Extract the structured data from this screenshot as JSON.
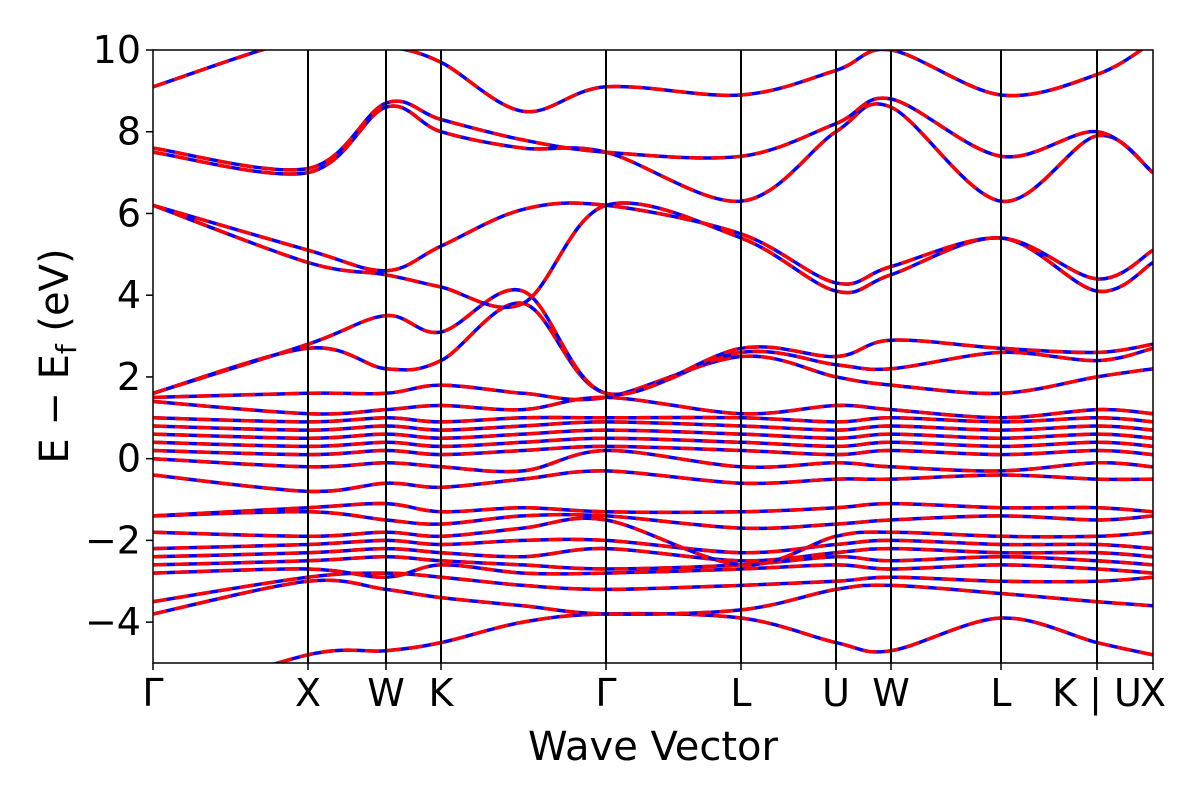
{
  "chart_data": {
    "type": "line",
    "title": "",
    "xlabel": "Wave Vector",
    "ylabel": "E − E_f (eV)",
    "ylabel_main": "E − E",
    "ylabel_sub": "f",
    "ylabel_unit": " (eV)",
    "ylim": [
      -5,
      10
    ],
    "xlim": [
      0,
      1
    ],
    "grid": false,
    "y_ticks": [
      {
        "value": -4,
        "label": "−4"
      },
      {
        "value": -2,
        "label": "−2"
      },
      {
        "value": 0,
        "label": "0"
      },
      {
        "value": 2,
        "label": "2"
      },
      {
        "value": 4,
        "label": "4"
      },
      {
        "value": 6,
        "label": "6"
      },
      {
        "value": 8,
        "label": "8"
      },
      {
        "value": 10,
        "label": "10"
      }
    ],
    "kpoints": [
      {
        "label": "Γ",
        "x": 0.0
      },
      {
        "label": "X",
        "x": 0.155
      },
      {
        "label": "W",
        "x": 0.233
      },
      {
        "label": "K",
        "x": 0.288
      },
      {
        "label": "Γ",
        "x": 0.453
      },
      {
        "label": "L",
        "x": 0.588
      },
      {
        "label": "U",
        "x": 0.683
      },
      {
        "label": "W",
        "x": 0.738
      },
      {
        "label": "L",
        "x": 0.848
      },
      {
        "label": "K | U",
        "x": 0.944
      },
      {
        "label": "X",
        "x": 1.0
      }
    ],
    "series_colors": {
      "first": "#0000ff",
      "second": "#ff0000"
    },
    "line_style": "blue solid line overlaid by red dashed line (identical bands)",
    "x": [
      0.0,
      0.155,
      0.233,
      0.288,
      0.37,
      0.453,
      0.588,
      0.683,
      0.738,
      0.848,
      0.944,
      1.0
    ],
    "bands": [
      [
        -6.0,
        -4.8,
        -4.7,
        -4.5,
        -4.0,
        -3.8,
        -3.9,
        -4.5,
        -4.7,
        -3.9,
        -4.5,
        -4.8
      ],
      [
        -3.8,
        -3.0,
        -3.2,
        -3.4,
        -3.6,
        -3.8,
        -3.7,
        -3.2,
        -3.1,
        -3.3,
        -3.5,
        -3.6
      ],
      [
        -3.5,
        -2.9,
        -2.8,
        -2.9,
        -3.1,
        -3.2,
        -3.1,
        -3.0,
        -2.9,
        -3.0,
        -3.0,
        -2.9
      ],
      [
        -2.8,
        -2.7,
        -2.9,
        -2.6,
        -2.8,
        -2.8,
        -2.7,
        -2.6,
        -2.7,
        -2.6,
        -2.7,
        -2.8
      ],
      [
        -2.6,
        -2.5,
        -2.4,
        -2.5,
        -2.6,
        -2.7,
        -2.6,
        -2.4,
        -2.5,
        -2.4,
        -2.5,
        -2.6
      ],
      [
        -2.4,
        -2.3,
        -2.2,
        -2.3,
        -2.4,
        -2.2,
        -2.5,
        -2.3,
        -2.2,
        -2.3,
        -2.3,
        -2.4
      ],
      [
        -2.2,
        -2.1,
        -2.0,
        -2.1,
        -2.0,
        -2.0,
        -2.3,
        -2.1,
        -2.0,
        -2.1,
        -2.1,
        -2.2
      ],
      [
        -1.8,
        -1.9,
        -1.8,
        -1.9,
        -1.7,
        -1.5,
        -2.6,
        -1.9,
        -1.8,
        -1.9,
        -1.9,
        -1.8
      ],
      [
        -1.4,
        -1.3,
        -1.5,
        -1.6,
        -1.4,
        -1.4,
        -1.7,
        -1.6,
        -1.5,
        -1.4,
        -1.5,
        -1.4
      ],
      [
        -1.4,
        -1.2,
        -1.1,
        -1.3,
        -1.2,
        -1.3,
        -1.3,
        -1.2,
        -1.1,
        -1.2,
        -1.2,
        -1.3
      ],
      [
        -0.4,
        -0.8,
        -0.6,
        -0.7,
        -0.5,
        -0.3,
        -0.6,
        -0.5,
        -0.5,
        -0.4,
        -0.5,
        -0.5
      ],
      [
        0.0,
        -0.2,
        -0.1,
        -0.2,
        -0.3,
        0.2,
        -0.2,
        -0.1,
        -0.2,
        -0.3,
        -0.1,
        -0.2
      ],
      [
        0.2,
        0.1,
        0.2,
        0.1,
        0.2,
        0.3,
        0.2,
        0.1,
        0.2,
        0.1,
        0.2,
        0.1
      ],
      [
        0.4,
        0.3,
        0.4,
        0.3,
        0.4,
        0.5,
        0.4,
        0.3,
        0.4,
        0.3,
        0.4,
        0.3
      ],
      [
        0.6,
        0.5,
        0.6,
        0.5,
        0.6,
        0.7,
        0.6,
        0.5,
        0.6,
        0.5,
        0.6,
        0.5
      ],
      [
        0.8,
        0.7,
        0.8,
        0.7,
        0.8,
        0.9,
        0.8,
        0.7,
        0.8,
        0.7,
        0.8,
        0.7
      ],
      [
        1.0,
        0.9,
        1.0,
        0.9,
        1.0,
        1.0,
        1.0,
        0.9,
        1.0,
        0.9,
        1.0,
        0.9
      ],
      [
        1.4,
        1.1,
        1.2,
        1.3,
        1.2,
        1.5,
        1.1,
        1.3,
        1.2,
        1.0,
        1.2,
        1.1
      ],
      [
        1.5,
        1.6,
        1.6,
        1.8,
        1.6,
        1.5,
        2.5,
        2.0,
        1.8,
        1.6,
        2.0,
        2.2
      ],
      [
        1.6,
        2.7,
        2.2,
        2.4,
        3.8,
        1.6,
        2.6,
        2.3,
        2.2,
        2.6,
        2.4,
        2.7
      ],
      [
        1.6,
        2.8,
        3.5,
        3.1,
        4.1,
        1.6,
        2.7,
        2.5,
        2.9,
        2.7,
        2.6,
        2.8
      ],
      [
        6.2,
        4.8,
        4.5,
        4.2,
        3.8,
        6.2,
        5.4,
        4.1,
        4.5,
        5.4,
        4.1,
        4.8
      ],
      [
        6.2,
        5.1,
        4.6,
        5.2,
        6.1,
        6.2,
        5.5,
        4.3,
        4.7,
        5.4,
        4.4,
        5.1
      ],
      [
        7.5,
        7.0,
        8.6,
        8.0,
        7.6,
        7.5,
        6.3,
        8.0,
        8.6,
        6.3,
        7.9,
        7.0
      ],
      [
        7.6,
        7.1,
        8.7,
        8.3,
        7.8,
        7.5,
        7.4,
        8.2,
        8.8,
        7.4,
        8.0,
        7.0
      ],
      [
        9.1,
        10.3,
        10.1,
        9.7,
        8.5,
        9.1,
        8.9,
        9.5,
        10.0,
        8.9,
        9.4,
        10.2
      ]
    ]
  }
}
